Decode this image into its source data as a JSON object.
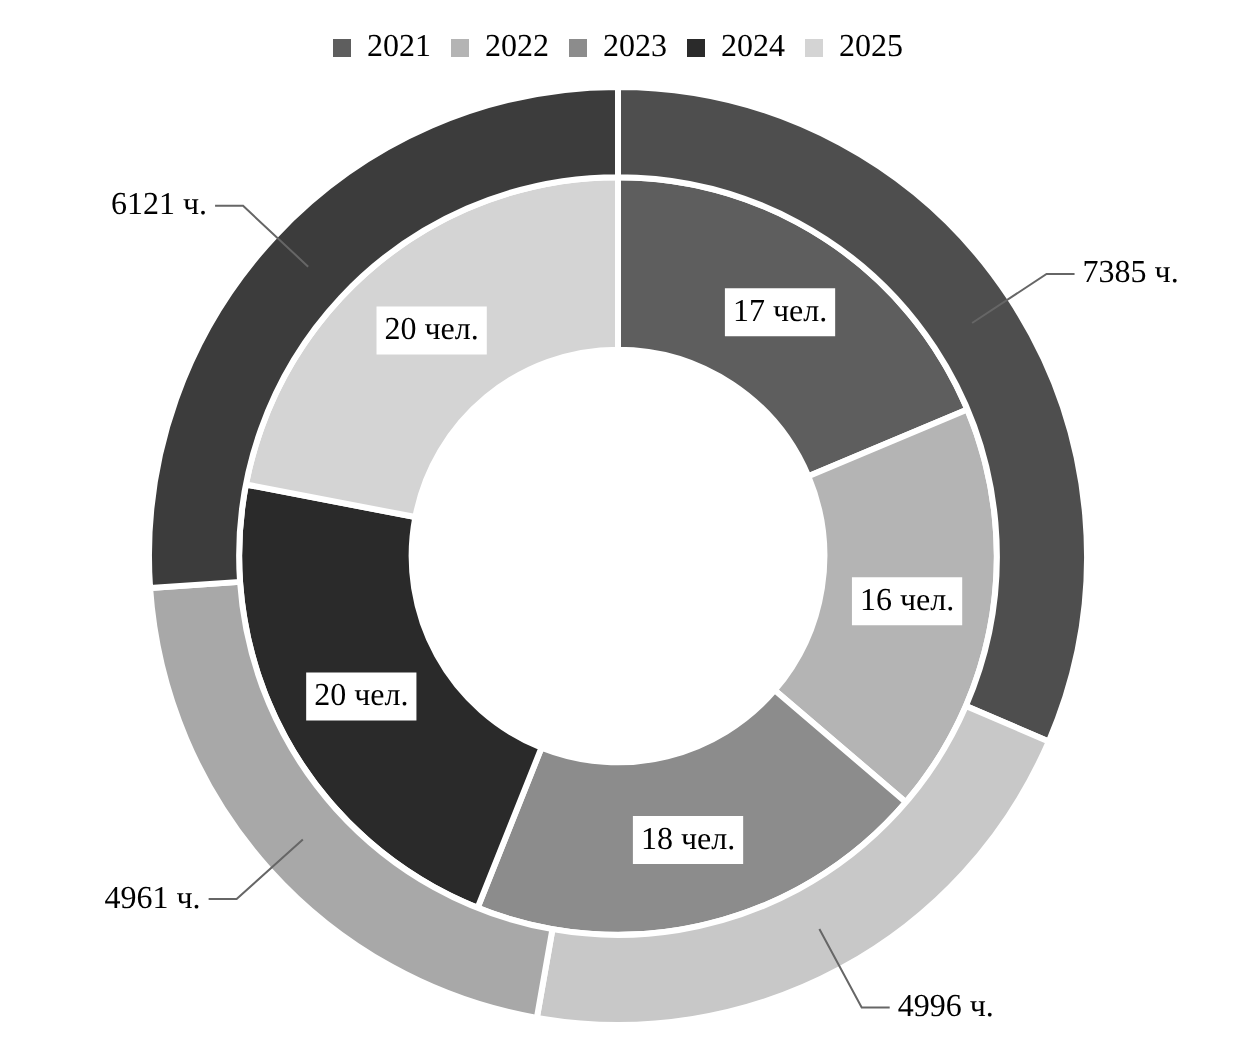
{
  "chart_data": {
    "type": "donut",
    "categories": [
      "2021",
      "2022",
      "2023",
      "2024",
      "2025"
    ],
    "colors": [
      "#5e5e5e",
      "#b4b4b4",
      "#8c8c8c",
      "#2a2a2a",
      "#d4d4d4"
    ],
    "legend": "top",
    "series": [
      {
        "values": [
          7385,
          4996,
          4961,
          6121,
          null
        ],
        "colors": [
          "#4e4e4e",
          "#c8c8c8",
          "#a8a8a8",
          "#3c3c3c",
          "#d4d4d4"
        ],
        "value_labels": [
          "7385 ч.",
          "4996 ч.",
          "4961 ч.",
          "6121 ч.",
          null
        ]
      },
      {
        "values": [
          17,
          16,
          18,
          20,
          20
        ],
        "colors": [
          "#5e5e5e",
          "#b4b4b4",
          "#8c8c8c",
          "#2a2a2a",
          "#d4d4d4"
        ],
        "value_labels": [
          "17 чел.",
          "16 чел.",
          "18 чел.",
          "20 чел.",
          "20 чел."
        ]
      }
    ]
  }
}
